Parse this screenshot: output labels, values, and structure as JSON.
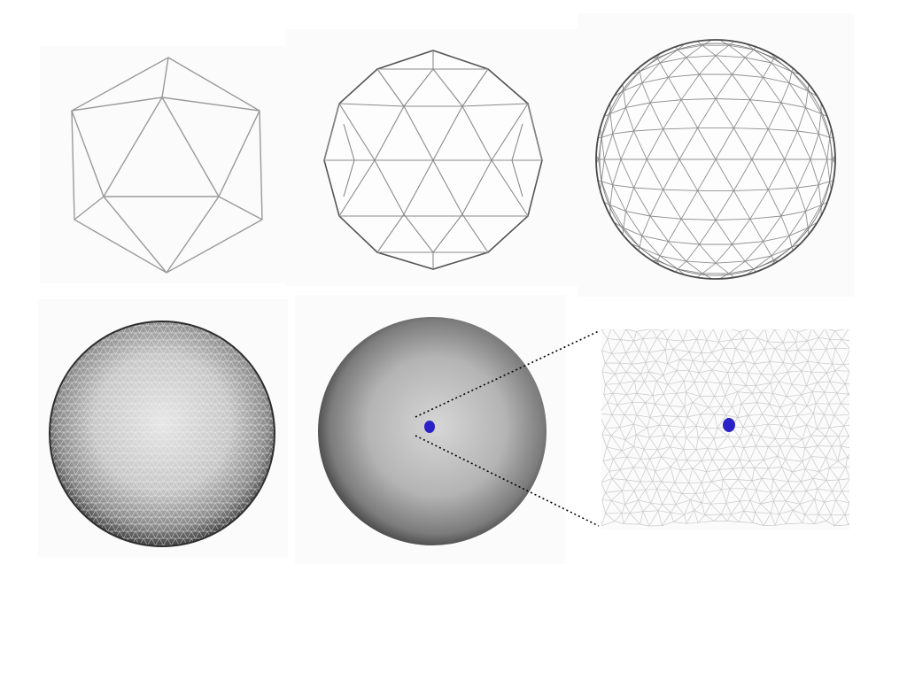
{
  "figure": {
    "panels": [
      {
        "id": "icosahedron",
        "description_name": "icosahedron-wireframe"
      },
      {
        "id": "subdivision-1",
        "description_name": "geodesic-sphere-level-1"
      },
      {
        "id": "subdivision-2",
        "description_name": "geodesic-sphere-level-2"
      },
      {
        "id": "dense-mesh",
        "description_name": "dense-mesh-sphere"
      },
      {
        "id": "shaded-sphere-with-marker",
        "description_name": "shaded-sphere"
      },
      {
        "id": "zoomed-mesh",
        "description_name": "zoomed-mesh-inset"
      }
    ],
    "colors": {
      "panel_bg": "#fbfbfb",
      "wire_light": "#9a9a9a",
      "wire_dark": "#555555",
      "mesh_grey": "#c8c8c8",
      "marker_blue": "#2a22c8",
      "leader_line": "#000000"
    }
  }
}
